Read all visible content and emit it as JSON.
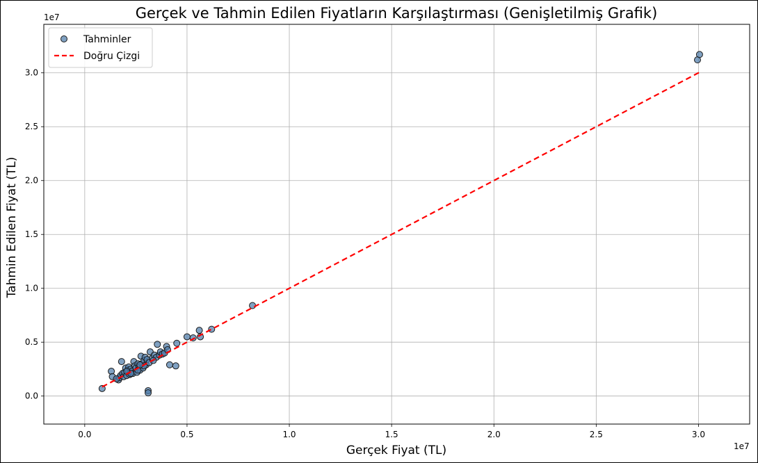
{
  "chart_data": {
    "type": "scatter",
    "title": "Gerçek ve Tahmin Edilen Fiyatların Karşılaştırması (Genişletilmiş Grafik)",
    "xlabel": "Gerçek Fiyat (TL)",
    "ylabel": "Tahmin Edilen Fiyat (TL)",
    "x_offset_label": "1e7",
    "y_offset_label": "1e7",
    "xlim": [
      -2000000,
      32500000
    ],
    "ylim": [
      -2600000,
      34500000
    ],
    "x_ticks": [
      0,
      5000000,
      10000000,
      15000000,
      20000000,
      25000000,
      30000000
    ],
    "x_tick_labels": [
      "0.0",
      "0.5",
      "1.0",
      "1.5",
      "2.0",
      "2.5",
      "3.0"
    ],
    "y_ticks": [
      0,
      5000000,
      10000000,
      15000000,
      20000000,
      25000000,
      30000000
    ],
    "y_tick_labels": [
      "0.0",
      "0.5",
      "1.0",
      "1.5",
      "2.0",
      "2.5",
      "3.0"
    ],
    "grid": true,
    "legend_position": "top-left",
    "series": [
      {
        "name": "Tahminler",
        "kind": "scatter",
        "color": "#4f7dab",
        "edge_color": "#1a1a1a",
        "points": [
          [
            850000,
            700000
          ],
          [
            1300000,
            2300000
          ],
          [
            1350000,
            1800000
          ],
          [
            1650000,
            1500000
          ],
          [
            1700000,
            1700000
          ],
          [
            1750000,
            1900000
          ],
          [
            1800000,
            3200000
          ],
          [
            1850000,
            2100000
          ],
          [
            1900000,
            1800000
          ],
          [
            1950000,
            2200000
          ],
          [
            2000000,
            2600000
          ],
          [
            2050000,
            1900000
          ],
          [
            2100000,
            2400000
          ],
          [
            2150000,
            2700000
          ],
          [
            2200000,
            2000000
          ],
          [
            2250000,
            2500000
          ],
          [
            2300000,
            2300000
          ],
          [
            2350000,
            2100000
          ],
          [
            2400000,
            3200000
          ],
          [
            2450000,
            2800000
          ],
          [
            2500000,
            2600000
          ],
          [
            2550000,
            2200000
          ],
          [
            2600000,
            3000000
          ],
          [
            2650000,
            2700000
          ],
          [
            2700000,
            2400000
          ],
          [
            2750000,
            3700000
          ],
          [
            2800000,
            3000000
          ],
          [
            2850000,
            2600000
          ],
          [
            2900000,
            3300000
          ],
          [
            2950000,
            3600000
          ],
          [
            3000000,
            2900000
          ],
          [
            3050000,
            3400000
          ],
          [
            3100000,
            500000
          ],
          [
            3100000,
            300000
          ],
          [
            3150000,
            3100000
          ],
          [
            3200000,
            4100000
          ],
          [
            3300000,
            3500000
          ],
          [
            3400000,
            3800000
          ],
          [
            3500000,
            3600000
          ],
          [
            3550000,
            4800000
          ],
          [
            3650000,
            3800000
          ],
          [
            3700000,
            4100000
          ],
          [
            3800000,
            3900000
          ],
          [
            3900000,
            4000000
          ],
          [
            4000000,
            4600000
          ],
          [
            4050000,
            4300000
          ],
          [
            4150000,
            2900000
          ],
          [
            4450000,
            2800000
          ],
          [
            4500000,
            4900000
          ],
          [
            5000000,
            5500000
          ],
          [
            5300000,
            5400000
          ],
          [
            5600000,
            6100000
          ],
          [
            5650000,
            5500000
          ],
          [
            6200000,
            6200000
          ],
          [
            8200000,
            8400000
          ],
          [
            29950000,
            31200000
          ],
          [
            30050000,
            31700000
          ],
          [
            1550000,
            1600000
          ],
          [
            2250000,
            2100000
          ],
          [
            2600000,
            2400000
          ],
          [
            2900000,
            2800000
          ],
          [
            3350000,
            3300000
          ],
          [
            2700000,
            2900000
          ],
          [
            2050000,
            2300000
          ]
        ]
      },
      {
        "name": "Doğru Çizgi",
        "kind": "line",
        "style": "dashed",
        "color": "#ff0000",
        "points": [
          [
            850000,
            850000
          ],
          [
            30050000,
            30050000
          ]
        ]
      }
    ]
  }
}
